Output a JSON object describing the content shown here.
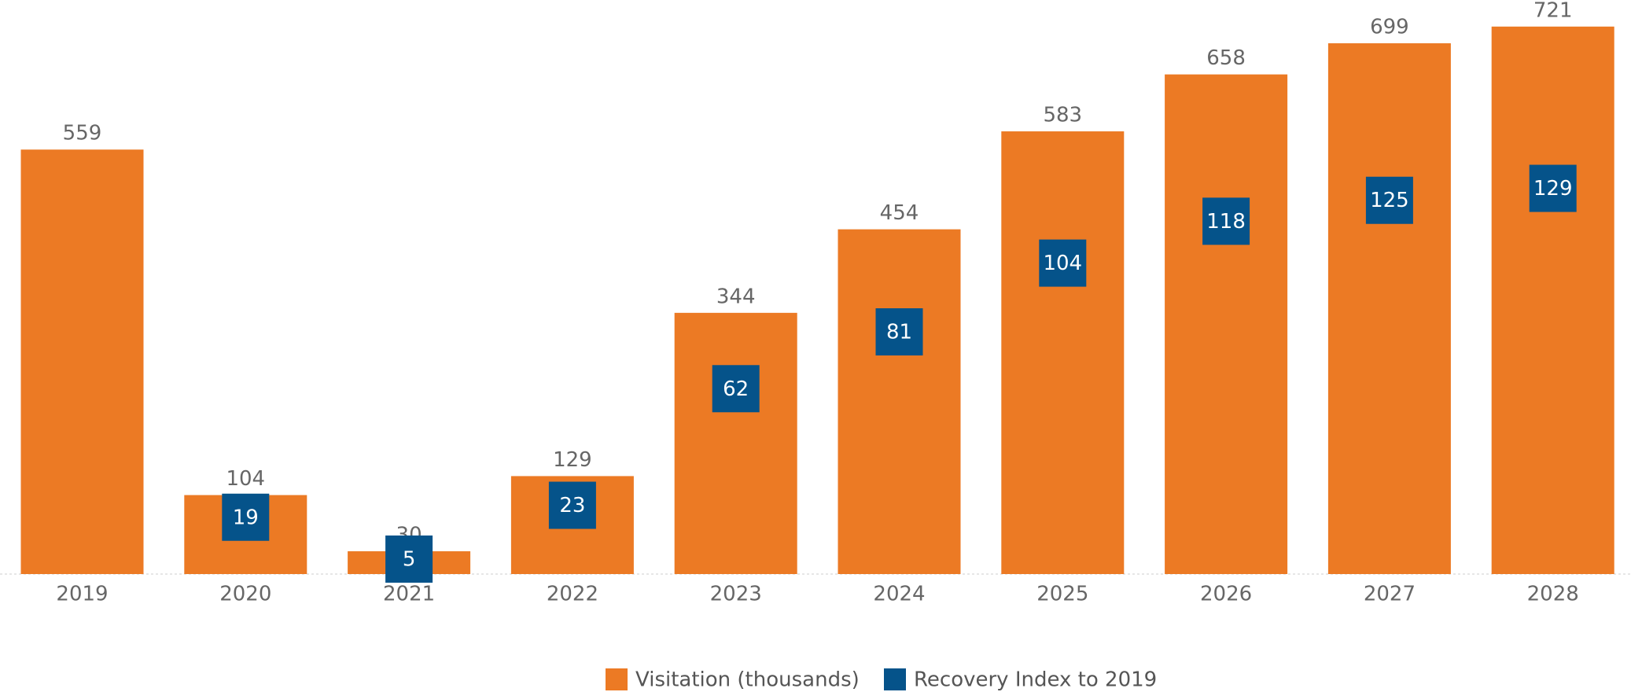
{
  "chart_data": {
    "type": "bar",
    "categories": [
      "2019",
      "2020",
      "2021",
      "2022",
      "2023",
      "2024",
      "2025",
      "2026",
      "2027",
      "2028"
    ],
    "series": [
      {
        "name": "Visitation (thousands)",
        "color": "#ec7a24",
        "type": "bar",
        "values": [
          559,
          104,
          30,
          129,
          344,
          454,
          583,
          658,
          699,
          721
        ]
      },
      {
        "name": "Recovery Index to 2019",
        "color": "#05538a",
        "type": "marker",
        "axis": "y2",
        "values": [
          null,
          19,
          5,
          23,
          62,
          81,
          104,
          118,
          125,
          129
        ]
      }
    ],
    "ylim": [
      0,
      756
    ],
    "y2lim": [
      0,
      192
    ],
    "legend": "bottom"
  }
}
